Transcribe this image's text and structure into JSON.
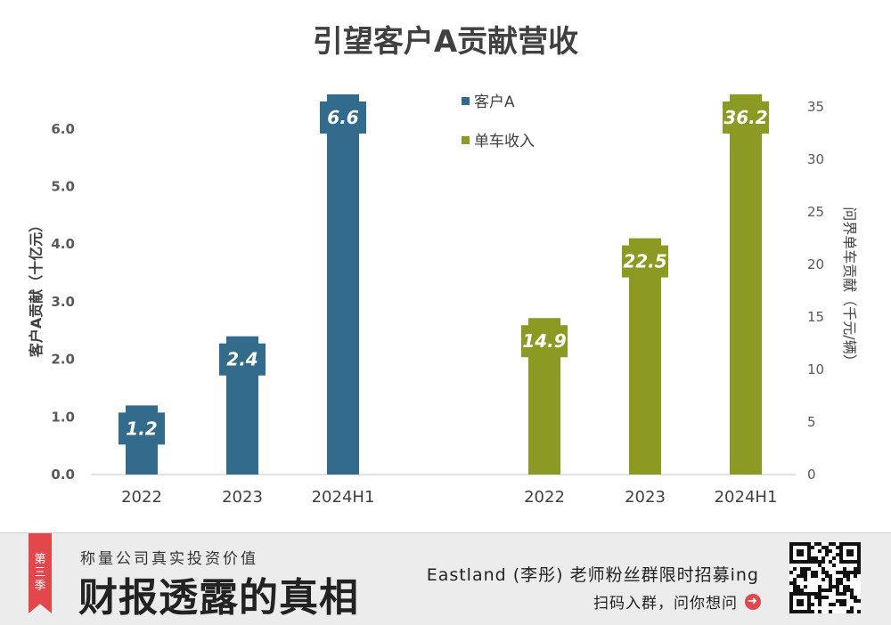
{
  "chart_data": {
    "type": "bar",
    "title": "引望客户A贡献营收",
    "categories": [
      "2022",
      "2023",
      "2024H1"
    ],
    "series": [
      {
        "name": "客户A",
        "axis": "left",
        "color": "#336b8d",
        "values": [
          1.2,
          2.4,
          6.6
        ],
        "labels": [
          "1.2",
          "2.4",
          "6.6"
        ]
      },
      {
        "name": "单车收入",
        "axis": "right",
        "color": "#8c9a23",
        "values": [
          14.9,
          22.5,
          36.2
        ],
        "labels": [
          "14.9",
          "22.5",
          "36.2"
        ]
      }
    ],
    "y_left": {
      "label": "客户A贡献（十亿元）",
      "range": [
        0,
        6.6
      ],
      "ticks": [
        "0.0",
        "1.0",
        "2.0",
        "3.0",
        "4.0",
        "5.0",
        "6.0"
      ]
    },
    "y_right": {
      "label": "问界单车贡献（千元/辆）",
      "range": [
        0,
        36.2
      ],
      "ticks": [
        "0",
        "5",
        "10",
        "15",
        "20",
        "25",
        "30",
        "35"
      ]
    },
    "legend": "top-center",
    "grid": false
  },
  "footer": {
    "season_chars": [
      "第",
      "三",
      "季"
    ],
    "slogan": "称量公司真实投资价值",
    "brand": "财报透露的真相",
    "recruit": "Eastland (李彤) 老师粉丝群限时招募ing",
    "scan": "扫码入群，问你想问",
    "arrow_icon": "arrow-right-icon",
    "qr_icon": "qr-code-icon"
  }
}
